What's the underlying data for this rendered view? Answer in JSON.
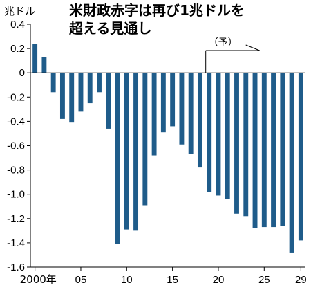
{
  "chart_data": {
    "type": "bar",
    "title_lines": [
      "米財政赤字は再び1兆ドルを",
      "超える見通し"
    ],
    "ylabel": "兆ドル",
    "ylim": [
      -1.6,
      0.4
    ],
    "y_ticks": [
      "0.4",
      "0.2",
      "0",
      "-0.2",
      "-0.4",
      "-0.6",
      "-0.8",
      "-1.0",
      "-1.2",
      "-1.4",
      "-1.6"
    ],
    "y_tick_values": [
      0.4,
      0.2,
      0,
      -0.2,
      -0.4,
      -0.6,
      -0.8,
      -1.0,
      -1.2,
      -1.4,
      -1.6
    ],
    "x_tick_labels": [
      "2000年",
      "05",
      "10",
      "15",
      "20",
      "25",
      "29"
    ],
    "x_tick_years": [
      2000,
      2005,
      2010,
      2015,
      2020,
      2025,
      2029
    ],
    "x_first_year": 2000,
    "x_last_year": 2029,
    "forecast_label": "（予）",
    "forecast_start_year": 2019,
    "bar_color": "#1f5c8a",
    "categories": [
      2000,
      2001,
      2002,
      2003,
      2004,
      2005,
      2006,
      2007,
      2008,
      2009,
      2010,
      2011,
      2012,
      2013,
      2014,
      2015,
      2016,
      2017,
      2018,
      2019,
      2020,
      2021,
      2022,
      2023,
      2024,
      2025,
      2026,
      2027,
      2028,
      2029
    ],
    "values": [
      0.24,
      0.13,
      -0.16,
      -0.38,
      -0.41,
      -0.32,
      -0.25,
      -0.16,
      -0.46,
      -1.41,
      -1.29,
      -1.3,
      -1.09,
      -0.68,
      -0.49,
      -0.44,
      -0.59,
      -0.67,
      -0.78,
      -0.98,
      -1.01,
      -1.04,
      -1.16,
      -1.18,
      -1.28,
      -1.27,
      -1.27,
      -1.26,
      -1.48,
      -1.38
    ]
  }
}
